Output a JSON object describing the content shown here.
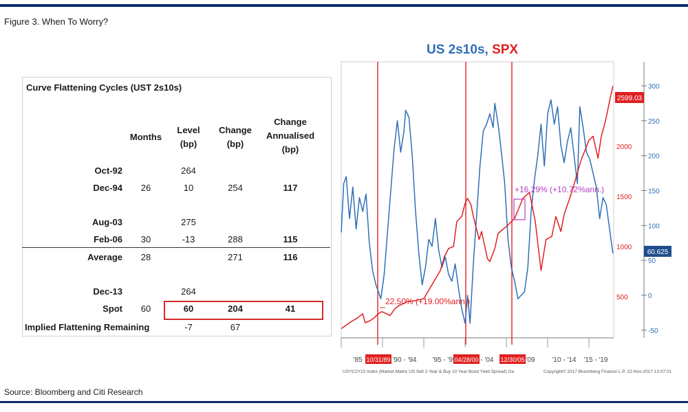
{
  "figure_title": "Figure 3. When To Worry?",
  "source": "Source: Bloomberg and Citi Research",
  "table": {
    "title": "Curve Flattening Cycles (UST 2s10s)",
    "headers": {
      "months": "Months",
      "level": "Level\n(bp)",
      "change": "Change\n(bp)",
      "annualised": "Change\nAnnualised\n(bp)"
    },
    "rows": [
      {
        "label": "Oct-92",
        "months": "",
        "level": "264",
        "change": "",
        "annualised": ""
      },
      {
        "label": "Dec-94",
        "months": "26",
        "level": "10",
        "change": "254",
        "annualised": "117"
      },
      {
        "label": "Aug-03",
        "months": "",
        "level": "275",
        "change": "",
        "annualised": ""
      },
      {
        "label": "Feb-06",
        "months": "30",
        "level": "-13",
        "change": "288",
        "annualised": "115"
      },
      {
        "label": "Average",
        "months": "28",
        "level": "",
        "change": "271",
        "annualised": "116"
      },
      {
        "label": "Dec-13",
        "months": "",
        "level": "264",
        "change": "",
        "annualised": ""
      },
      {
        "label": "Spot",
        "months": "60",
        "level": "60",
        "change": "204",
        "annualised": "41"
      },
      {
        "label": "Implied Flattening Remaining",
        "months": "",
        "level": "-7",
        "change": "67",
        "annualised": ""
      }
    ]
  },
  "chart_data": {
    "type": "line",
    "title_part1": "US 2s10s",
    "title_sep": ", ",
    "title_part2": "SPX",
    "title_color_1": "#2f6eb8",
    "title_color_2": "#e02020",
    "x_tick_labels": [
      "'85",
      "'90 - '94",
      "'95 - '99",
      "'00 - '04",
      "'05 - '09",
      "'10 - '14",
      "'15 - '19"
    ],
    "date_markers": [
      "10/31/89",
      "04/28/00",
      "12/30/05"
    ],
    "right_axis": {
      "ticks": [
        300,
        250,
        200,
        150,
        100,
        50,
        0,
        -50
      ],
      "ylim": [
        -50,
        300
      ],
      "color": "#2f6eb8"
    },
    "left_axis": {
      "ticks": [
        2500,
        2000,
        1500,
        1000,
        500
      ],
      "color": "#e02020"
    },
    "spx_last_label": "2599.03",
    "us2s10s_last_label": "60.625",
    "annotations": [
      {
        "text": "22.50% (+19.00%ann.)",
        "color": "#e02020"
      },
      {
        "text": "+16.29% (+10.72%ann.)",
        "color": "#b040c0"
      }
    ],
    "footer_left": "USYC2Y10 Index (Market Matrix US Sell 2 Year & Buy 10 Year Bond Yield Spread) Ge",
    "footer_right": "Copyright© 2017 Bloomberg Finance L.P.   22-Nov-2017 13:07:01",
    "series": [
      {
        "name": "US 2s10s",
        "color": "#2f6eb8",
        "x": [
          1985.0,
          1985.3,
          1985.6,
          1986.0,
          1986.4,
          1986.8,
          1987.2,
          1987.6,
          1988.0,
          1988.4,
          1988.8,
          1989.2,
          1989.5,
          1989.8,
          1990.2,
          1990.6,
          1991.0,
          1991.4,
          1991.8,
          1992.2,
          1992.6,
          1992.8,
          1993.2,
          1993.6,
          1994.0,
          1994.4,
          1994.8,
          1995.2,
          1995.6,
          1996.0,
          1996.4,
          1996.8,
          1997.2,
          1997.6,
          1998.0,
          1998.4,
          1998.8,
          1999.2,
          1999.6,
          2000.0,
          2000.3,
          2000.6,
          2001.0,
          2001.4,
          2001.8,
          2002.2,
          2002.6,
          2003.0,
          2003.4,
          2003.6,
          2004.0,
          2004.4,
          2004.8,
          2005.2,
          2005.6,
          2006.0,
          2006.4,
          2006.8,
          2007.2,
          2007.6,
          2008.0,
          2008.4,
          2008.8,
          2009.2,
          2009.6,
          2010.0,
          2010.4,
          2010.8,
          2011.2,
          2011.6,
          2012.0,
          2012.4,
          2012.8,
          2013.2,
          2013.6,
          2013.9,
          2014.3,
          2014.7,
          2015.1,
          2015.5,
          2015.9,
          2016.3,
          2016.7,
          2017.1,
          2017.5,
          2017.9
        ],
        "values": [
          90,
          160,
          170,
          110,
          155,
          95,
          140,
          120,
          145,
          75,
          35,
          15,
          5,
          -5,
          30,
          90,
          150,
          210,
          250,
          205,
          235,
          265,
          255,
          200,
          120,
          60,
          15,
          40,
          80,
          70,
          110,
          65,
          40,
          55,
          30,
          20,
          45,
          10,
          -20,
          -40,
          0,
          -40,
          45,
          115,
          185,
          235,
          245,
          260,
          240,
          275,
          245,
          205,
          160,
          80,
          40,
          20,
          -5,
          0,
          5,
          40,
          120,
          165,
          200,
          245,
          185,
          260,
          280,
          245,
          270,
          215,
          190,
          220,
          240,
          200,
          160,
          270,
          240,
          205,
          195,
          175,
          155,
          110,
          140,
          130,
          95,
          60
        ]
      },
      {
        "name": "SPX",
        "color": "#e02020",
        "x": [
          1985.0,
          1986.0,
          1987.0,
          1987.6,
          1987.9,
          1988.5,
          1989.0,
          1989.5,
          1989.9,
          1990.5,
          1990.9,
          1991.5,
          1992.0,
          1993.0,
          1994.0,
          1995.0,
          1995.5,
          1996.0,
          1997.0,
          1997.5,
          1998.0,
          1998.6,
          1999.0,
          1999.6,
          2000.0,
          2000.3,
          2000.7,
          2001.0,
          2001.7,
          2002.0,
          2002.7,
          2003.0,
          2003.6,
          2004.0,
          2005.0,
          2006.0,
          2007.0,
          2007.8,
          2008.5,
          2009.2,
          2009.8,
          2010.5,
          2011.0,
          2011.6,
          2012.0,
          2013.0,
          2014.0,
          2015.0,
          2015.5,
          2016.1,
          2016.5,
          2017.0,
          2017.5,
          2017.9
        ],
        "values": [
          180,
          240,
          290,
          330,
          240,
          260,
          290,
          330,
          350,
          330,
          310,
          380,
          410,
          450,
          460,
          480,
          550,
          620,
          760,
          900,
          980,
          1000,
          1250,
          1300,
          1430,
          1480,
          1420,
          1300,
          1070,
          1150,
          880,
          850,
          980,
          1130,
          1200,
          1280,
          1480,
          1540,
          1250,
          760,
          1070,
          1100,
          1300,
          1150,
          1320,
          1560,
          1850,
          2060,
          2100,
          1880,
          2100,
          2250,
          2450,
          2600
        ]
      }
    ]
  }
}
